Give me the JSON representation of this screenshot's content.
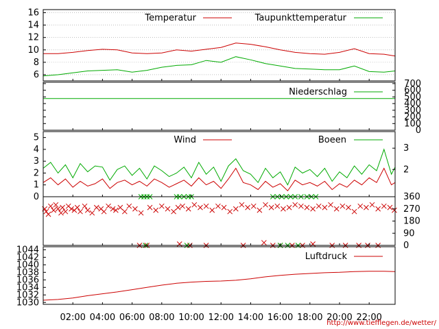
{
  "chart_data": [
    {
      "type": "line",
      "panel": "temperature",
      "ylim": [
        5,
        16.5
      ],
      "yticks": [
        "6",
        "8",
        "10",
        "12",
        "14",
        "16"
      ],
      "ytick_values": [
        6,
        8,
        10,
        12,
        14,
        16
      ],
      "grid": true,
      "legend_placement": "top",
      "series": [
        {
          "name": "Temperatur",
          "color": "#cc0000",
          "x": [
            0,
            1,
            2,
            3,
            4,
            5,
            6,
            7,
            8,
            9,
            10,
            11,
            12,
            13,
            14,
            15,
            16,
            17,
            18,
            19,
            20,
            21,
            22,
            23,
            23.75
          ],
          "values": [
            9.4,
            9.4,
            9.6,
            9.9,
            10.1,
            10.0,
            9.5,
            9.4,
            9.5,
            10.0,
            9.8,
            10.1,
            10.4,
            11.1,
            10.9,
            10.5,
            10.0,
            9.6,
            9.4,
            9.3,
            9.6,
            10.2,
            9.4,
            9.3,
            9.0
          ]
        },
        {
          "name": "Taupunkttemperatur",
          "color": "#00aa00",
          "x": [
            0,
            1,
            2,
            3,
            4,
            5,
            6,
            7,
            8,
            9,
            10,
            11,
            12,
            13,
            14,
            15,
            16,
            17,
            18,
            19,
            20,
            21,
            22,
            23,
            23.75
          ],
          "values": [
            5.8,
            6.0,
            6.3,
            6.6,
            6.7,
            6.8,
            6.4,
            6.7,
            7.2,
            7.5,
            7.6,
            8.3,
            8.0,
            8.9,
            8.4,
            7.8,
            7.4,
            7.0,
            6.9,
            6.8,
            6.8,
            7.4,
            6.5,
            6.4,
            6.6
          ]
        }
      ]
    },
    {
      "type": "line",
      "panel": "precipitation",
      "ylim": [
        0,
        720
      ],
      "yticks": [
        "0",
        "100",
        "200",
        "300",
        "400",
        "500",
        "600",
        "700"
      ],
      "ytick_values": [
        0,
        100,
        200,
        300,
        400,
        500,
        600,
        700
      ],
      "legend_placement": "top-right",
      "series": [
        {
          "name": "Niederschlag",
          "color": "#00aa00",
          "x": [
            0,
            23.75
          ],
          "values": [
            475,
            475
          ]
        }
      ]
    },
    {
      "type": "line",
      "panel": "wind",
      "ylim": [
        0,
        5.5
      ],
      "yticks": [
        "0",
        "1",
        "2",
        "3",
        "4",
        "5"
      ],
      "ytick_values": [
        0,
        1,
        2,
        3,
        4,
        5
      ],
      "right_ticks": [
        "2",
        "3"
      ],
      "right_tick_values": [
        2.3,
        4.1
      ],
      "legend_placement": "top",
      "series": [
        {
          "name": "Wind",
          "color": "#cc0000",
          "x": [
            0,
            0.5,
            1,
            1.5,
            2,
            2.5,
            3,
            3.5,
            4,
            4.5,
            5,
            5.5,
            6,
            6.5,
            7,
            7.5,
            8,
            8.5,
            9,
            9.5,
            10,
            10.5,
            11,
            11.5,
            12,
            12.5,
            13,
            13.5,
            14,
            14.5,
            15,
            15.5,
            16,
            16.5,
            17,
            17.5,
            18,
            18.5,
            19,
            19.5,
            20,
            20.5,
            21,
            21.5,
            22,
            22.5,
            23,
            23.5,
            23.75
          ],
          "values": [
            1.2,
            1.6,
            1.0,
            1.5,
            0.8,
            1.3,
            0.9,
            1.1,
            1.5,
            0.7,
            1.2,
            1.4,
            1.0,
            1.3,
            0.9,
            1.5,
            1.2,
            0.8,
            1.1,
            1.4,
            0.9,
            1.6,
            1.0,
            1.3,
            0.7,
            1.5,
            2.4,
            1.2,
            1.0,
            0.6,
            1.3,
            0.8,
            1.1,
            0.5,
            1.4,
            1.0,
            1.2,
            0.9,
            1.3,
            0.6,
            1.1,
            0.8,
            1.4,
            1.0,
            1.6,
            1.2,
            2.4,
            1.0,
            1.2
          ]
        },
        {
          "name": "Boeen",
          "color": "#00aa00",
          "x": [
            0,
            0.5,
            1,
            1.5,
            2,
            2.5,
            3,
            3.5,
            4,
            4.5,
            5,
            5.5,
            6,
            6.5,
            7,
            7.5,
            8,
            8.5,
            9,
            9.5,
            10,
            10.5,
            11,
            11.5,
            12,
            12.5,
            13,
            13.5,
            14,
            14.5,
            15,
            15.5,
            16,
            16.5,
            17,
            17.5,
            18,
            18.5,
            19,
            19.5,
            20,
            20.5,
            21,
            21.5,
            22,
            22.5,
            23,
            23.5,
            23.75
          ],
          "values": [
            2.4,
            2.9,
            2.0,
            2.7,
            1.6,
            2.8,
            2.1,
            2.6,
            2.5,
            1.4,
            2.3,
            2.6,
            1.8,
            2.4,
            1.5,
            2.6,
            2.2,
            1.7,
            2.0,
            2.5,
            1.6,
            2.9,
            1.9,
            2.5,
            1.3,
            2.6,
            3.2,
            2.2,
            1.9,
            1.2,
            2.4,
            1.6,
            2.1,
            1.0,
            2.5,
            2.0,
            2.3,
            1.7,
            2.4,
            1.3,
            2.1,
            1.6,
            2.6,
            1.9,
            2.7,
            2.2,
            4.0,
            1.9,
            2.5
          ]
        }
      ]
    },
    {
      "type": "scatter",
      "panel": "wind-direction",
      "ylim": [
        0,
        360
      ],
      "right_ticks": [
        "0",
        "90",
        "180",
        "270",
        "360"
      ],
      "right_tick_values": [
        0,
        90,
        180,
        270,
        360
      ],
      "series": [
        {
          "name": "",
          "color": "#cc0000",
          "x": [
            0.1,
            0.2,
            0.35,
            0.5,
            0.7,
            0.85,
            1.0,
            1.2,
            1.3,
            1.5,
            1.7,
            1.9,
            2.1,
            2.3,
            2.5,
            2.8,
            3.0,
            3.3,
            3.6,
            3.9,
            4.1,
            4.4,
            4.7,
            4.9,
            5.2,
            5.5,
            5.8,
            6.2,
            6.6,
            7.2,
            7.6,
            8.0,
            8.4,
            8.8,
            9.1,
            9.4,
            9.8,
            10.2,
            10.6,
            11.0,
            11.4,
            11.8,
            12.2,
            12.6,
            13.0,
            13.4,
            13.8,
            14.2,
            14.6,
            15.0,
            15.4,
            15.8,
            16.2,
            16.6,
            17.0,
            17.4,
            17.8,
            18.2,
            18.6,
            19.0,
            19.4,
            19.8,
            20.2,
            20.6,
            21.0,
            21.4,
            21.8,
            22.2,
            22.6,
            23.0,
            23.4,
            23.7,
            6.5,
            7.0,
            9.2,
            9.9,
            11.0,
            13.5,
            14.9,
            15.5,
            16.0,
            16.8,
            17.5,
            18.2,
            19.5,
            20.4,
            21.3,
            21.9,
            22.6
          ],
          "values": [
            270,
            250,
            230,
            290,
            260,
            300,
            270,
            240,
            280,
            250,
            290,
            270,
            260,
            280,
            250,
            290,
            260,
            240,
            280,
            270,
            250,
            290,
            270,
            260,
            280,
            250,
            290,
            270,
            240,
            280,
            260,
            290,
            270,
            250,
            280,
            290,
            270,
            300,
            280,
            290,
            260,
            290,
            280,
            250,
            270,
            300,
            280,
            290,
            260,
            300,
            280,
            290,
            270,
            280,
            300,
            290,
            280,
            270,
            290,
            280,
            300,
            270,
            290,
            280,
            250,
            290,
            280,
            300,
            270,
            290,
            280,
            260,
            0,
            0,
            10,
            0,
            0,
            0,
            20,
            0,
            0,
            0,
            0,
            10,
            0,
            0,
            0,
            0,
            0
          ]
        },
        {
          "name": "",
          "color": "#00aa00",
          "x": [
            6.6,
            6.8,
            7.0,
            7.2,
            9.0,
            9.2,
            9.5,
            9.8,
            10.0,
            15.5,
            15.8,
            16.1,
            16.4,
            16.7,
            17.0,
            17.4,
            17.8,
            18.1,
            18.4,
            6.9,
            9.7,
            16.0,
            16.5,
            17.2
          ],
          "values": [
            360,
            360,
            360,
            360,
            360,
            360,
            360,
            360,
            360,
            360,
            360,
            360,
            360,
            360,
            360,
            360,
            360,
            360,
            360,
            0,
            0,
            0,
            0,
            0
          ]
        }
      ]
    },
    {
      "type": "line",
      "panel": "pressure",
      "ylim": [
        1029.5,
        1044.8
      ],
      "yticks": [
        "1030",
        "1032",
        "1034",
        "1036",
        "1038",
        "1040",
        "1042",
        "1044"
      ],
      "ytick_values": [
        1030,
        1032,
        1034,
        1036,
        1038,
        1040,
        1042,
        1044
      ],
      "legend_placement": "top-right",
      "series": [
        {
          "name": "Luftdruck",
          "color": "#cc0000",
          "x": [
            0,
            1,
            2,
            3,
            4,
            5,
            6,
            7,
            8,
            9,
            10,
            11,
            12,
            13,
            14,
            15,
            16,
            17,
            18,
            19,
            20,
            21,
            22,
            23,
            23.75
          ],
          "values": [
            1030.6,
            1030.8,
            1031.2,
            1031.8,
            1032.3,
            1032.8,
            1033.4,
            1034.0,
            1034.6,
            1035.1,
            1035.4,
            1035.6,
            1035.7,
            1035.9,
            1036.3,
            1036.8,
            1037.2,
            1037.5,
            1037.7,
            1037.9,
            1038.0,
            1038.2,
            1038.3,
            1038.3,
            1038.2
          ]
        }
      ]
    }
  ],
  "x_axis": {
    "hours": [
      2,
      4,
      6,
      8,
      10,
      12,
      14,
      16,
      18,
      20,
      22
    ],
    "labels": [
      "02:00",
      "04:00",
      "06:00",
      "08:00",
      "10:00",
      "12:00",
      "14:00",
      "16:00",
      "18:00",
      "20:00",
      "22:00"
    ],
    "range": [
      0,
      23.75
    ]
  },
  "credit": "http://www.tiefflegen.de/wetter/"
}
